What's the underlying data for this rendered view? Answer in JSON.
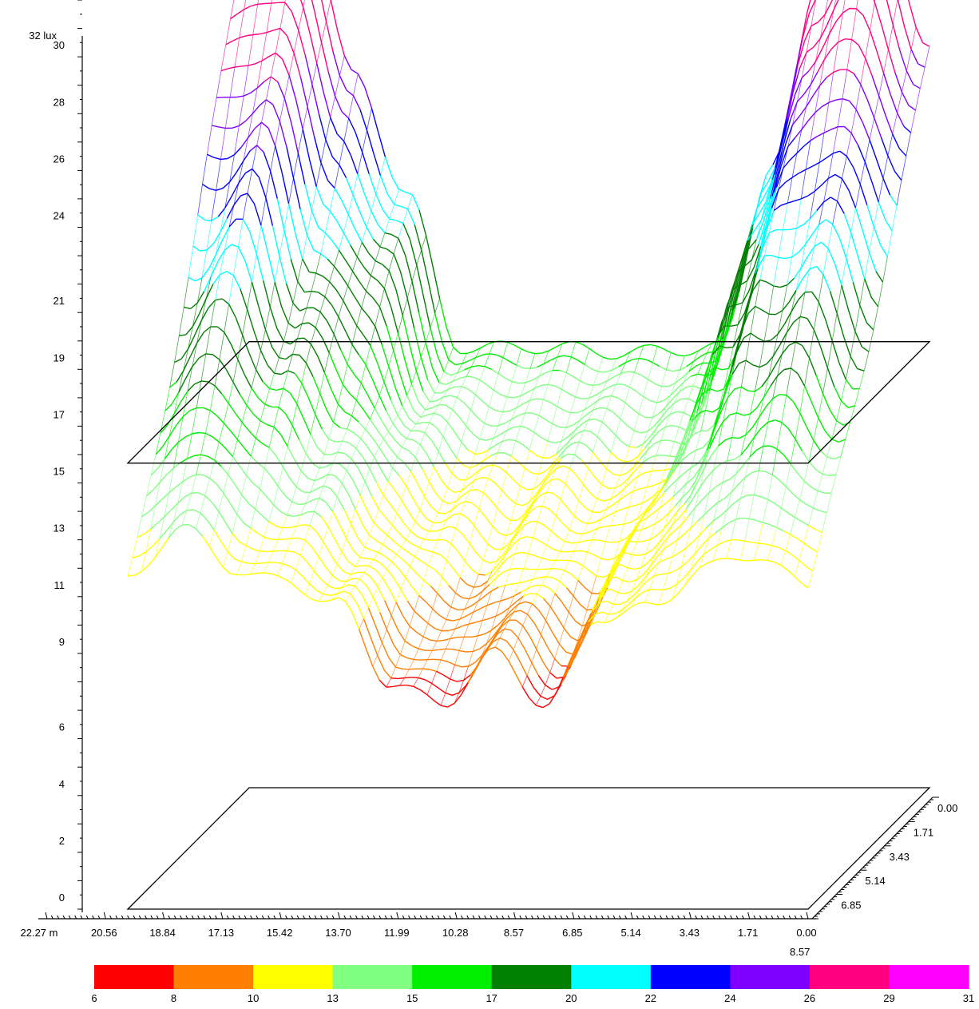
{
  "chart_data": {
    "type": "surface3d",
    "z_axis": {
      "unit": "lux",
      "top_label": "32 lux",
      "ticks": [
        "0",
        "2",
        "4",
        "6",
        "9",
        "11",
        "13",
        "15",
        "17",
        "19",
        "21",
        "24",
        "26",
        "28",
        "30"
      ],
      "range": [
        0,
        32
      ]
    },
    "x_axis": {
      "unit": "m",
      "ticks": [
        "22.27 m",
        "20.56",
        "18.84",
        "17.13",
        "15.42",
        "13.70",
        "11.99",
        "10.28",
        "8.57",
        "6.85",
        "5.14",
        "3.43",
        "1.71",
        "0.00"
      ],
      "range": [
        0,
        22.27
      ]
    },
    "y_axis": {
      "ticks": [
        "0.00",
        "1.71",
        "3.43",
        "5.14",
        "6.85",
        "8.57"
      ],
      "range": [
        0,
        8.57
      ]
    },
    "reference_plane_level": 15.7,
    "surface": {
      "x": [
        22.27,
        20.56,
        18.84,
        17.13,
        15.42,
        13.7,
        11.99,
        10.28,
        8.57,
        6.85,
        5.14,
        3.43,
        1.71,
        0.0
      ],
      "front_y8_57": [
        11.5,
        13.5,
        12.0,
        11.5,
        10.8,
        8.0,
        7.2,
        9.0,
        7.2,
        10.3,
        10.6,
        12.0,
        12.5,
        11.3
      ],
      "back_y0_00": [
        31.0,
        31.8,
        25.0,
        21.0,
        15.5,
        15.5,
        15.5,
        15.3,
        15.4,
        15.5,
        22.0,
        29.0,
        31.5,
        26.0
      ]
    },
    "colorbar": {
      "labels": [
        "6",
        "8",
        "10",
        "13",
        "15",
        "17",
        "20",
        "22",
        "24",
        "26",
        "29",
        "31"
      ],
      "colors": [
        "#ff0000",
        "#ff7f00",
        "#ffff00",
        "#80ff80",
        "#00ee00",
        "#007f00",
        "#00ffff",
        "#0000ff",
        "#8000ff",
        "#ff0080",
        "#ff00ff"
      ]
    }
  }
}
